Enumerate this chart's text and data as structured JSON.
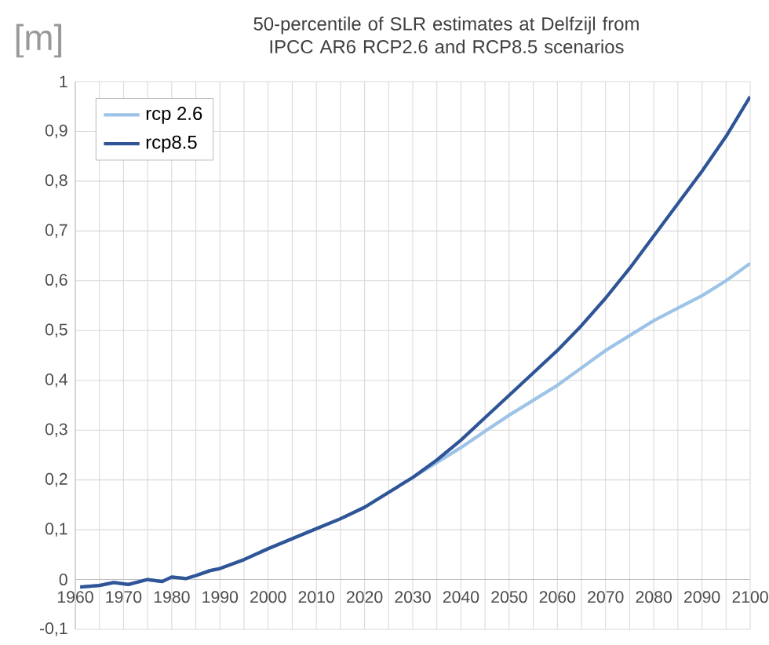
{
  "chart_data": {
    "type": "line",
    "title": "50-percentile of SLR estimates at Delfzijl from IPCC AR6 RCP2.6 and RCP8.5 scenarios",
    "ylabel": "[m]",
    "xlim": [
      1960,
      2100
    ],
    "xticks": [
      1960,
      {
        "value": 1965,
        "label": null
      },
      1970,
      {
        "value": 1975,
        "label": null
      },
      1980,
      {
        "value": 1985,
        "label": null
      },
      1990,
      {
        "value": 1995,
        "label": null
      },
      2000,
      {
        "value": 2005,
        "label": null
      },
      2010,
      {
        "value": 2015,
        "label": null
      },
      2020,
      {
        "value": 2025,
        "label": null
      },
      2030,
      {
        "value": 2035,
        "label": null
      },
      2040,
      {
        "value": 2045,
        "label": null
      },
      2050,
      {
        "value": 2055,
        "label": null
      },
      2060,
      {
        "value": 2065,
        "label": null
      },
      2070,
      {
        "value": 2075,
        "label": null
      },
      2080,
      {
        "value": 2085,
        "label": null
      },
      2090,
      {
        "value": 2095,
        "label": null
      },
      2100
    ],
    "ylim": [
      -0.1,
      1
    ],
    "yticks": [
      {
        "value": -0.1,
        "label": "-0,1"
      },
      0,
      {
        "value": 0.1,
        "label": "0,1"
      },
      {
        "value": 0.2,
        "label": "0,2"
      },
      {
        "value": 0.3,
        "label": "0,3"
      },
      {
        "value": 0.4,
        "label": "0,4"
      },
      {
        "value": 0.5,
        "label": "0,5"
      },
      {
        "value": 0.6,
        "label": "0,6"
      },
      {
        "value": 0.7,
        "label": "0,7"
      },
      {
        "value": 0.8,
        "label": "0,8"
      },
      {
        "value": 0.9,
        "label": "0,9"
      },
      1
    ],
    "grid": true,
    "legend": "top left",
    "marker": "none",
    "line_style": "solid",
    "series": [
      {
        "name": "rcp 2.6",
        "color": "#9dc3e6",
        "x": [
          1961,
          1965,
          1968,
          1971,
          1975,
          1978,
          1980,
          1983,
          1985,
          1988,
          1990,
          1995,
          2000,
          2005,
          2010,
          2015,
          2020,
          2025,
          2030,
          2035,
          2040,
          2045,
          2050,
          2055,
          2060,
          2065,
          2070,
          2075,
          2080,
          2085,
          2090,
          2095,
          2100
        ],
        "values": [
          -0.015,
          -0.012,
          -0.006,
          -0.01,
          0.0,
          -0.004,
          0.005,
          0.002,
          0.008,
          0.018,
          0.022,
          0.04,
          0.062,
          0.082,
          0.102,
          0.122,
          0.145,
          0.175,
          0.205,
          0.235,
          0.265,
          0.298,
          0.33,
          0.36,
          0.39,
          0.425,
          0.46,
          0.49,
          0.52,
          0.545,
          0.57,
          0.6,
          0.635
        ]
      },
      {
        "name": "rcp8.5",
        "color": "#2f5597",
        "x": [
          1961,
          1965,
          1968,
          1971,
          1975,
          1978,
          1980,
          1983,
          1985,
          1988,
          1990,
          1995,
          2000,
          2005,
          2010,
          2015,
          2020,
          2025,
          2030,
          2035,
          2040,
          2045,
          2050,
          2055,
          2060,
          2065,
          2070,
          2075,
          2080,
          2085,
          2090,
          2095,
          2100
        ],
        "values": [
          -0.015,
          -0.012,
          -0.006,
          -0.01,
          0.0,
          -0.004,
          0.005,
          0.002,
          0.008,
          0.018,
          0.022,
          0.04,
          0.062,
          0.082,
          0.102,
          0.122,
          0.145,
          0.175,
          0.205,
          0.24,
          0.28,
          0.325,
          0.37,
          0.415,
          0.46,
          0.51,
          0.565,
          0.625,
          0.69,
          0.755,
          0.82,
          0.89,
          0.97
        ]
      }
    ]
  }
}
